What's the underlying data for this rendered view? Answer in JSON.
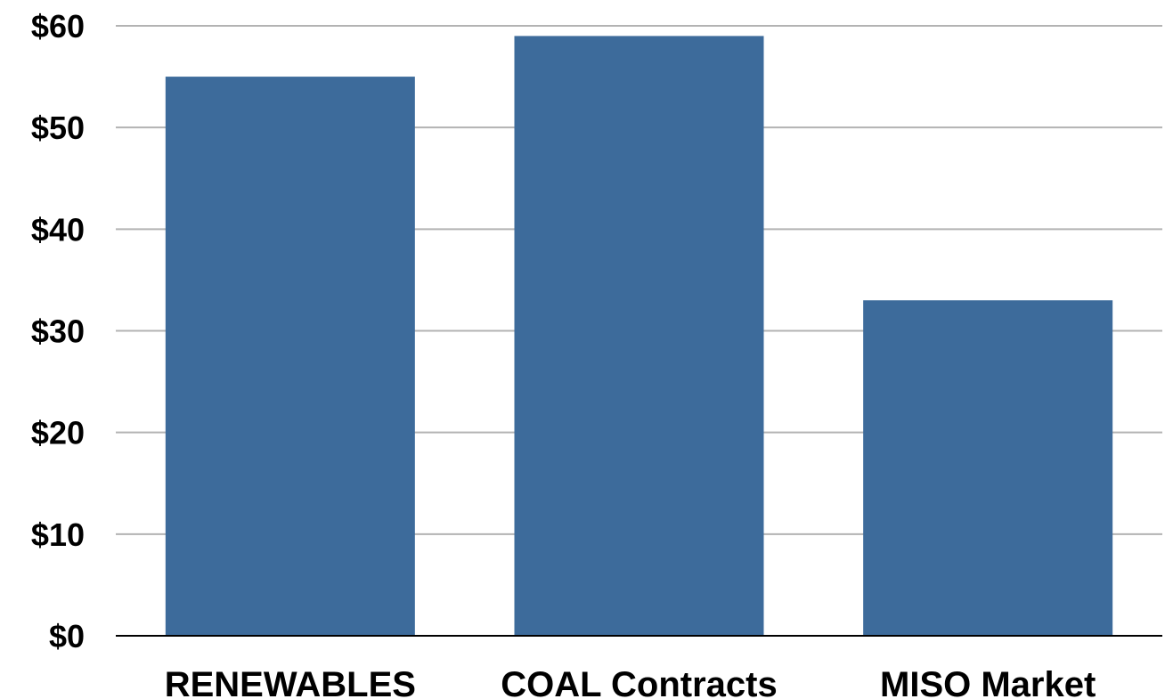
{
  "chart_data": {
    "type": "bar",
    "categories": [
      "RENEWABLES",
      "COAL Contracts",
      "MISO Market"
    ],
    "values": [
      55,
      59,
      33
    ],
    "title": "",
    "xlabel": "",
    "ylabel": "",
    "ylim": [
      0,
      60
    ],
    "y_tick_values": [
      0,
      10,
      20,
      30,
      40,
      50,
      60
    ],
    "y_tick_labels": [
      "$0",
      "$10",
      "$20",
      "$30",
      "$40",
      "$50",
      "$60"
    ],
    "grid": true,
    "legend": "none",
    "bar_color": "#3d6b9b"
  }
}
